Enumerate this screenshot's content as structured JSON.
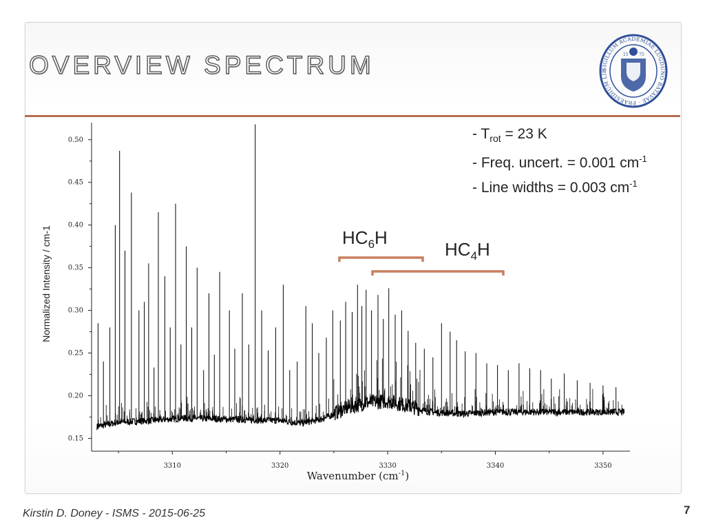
{
  "slide": {
    "title": "OVERVIEW SPECTRUM",
    "footer": "Kirstin D. Doney - ISMS - 2015-06-25",
    "page_number": "7"
  },
  "logo": {
    "name": "university-seal",
    "text": "SIGILLUM ACADEMIAE LUGDUNO BATAVAE · PRAESIDIUM LIBERTATIS",
    "year_left": "15",
    "year_right": "75",
    "color": "#2f4f9a"
  },
  "annotation": {
    "line1_prefix": "- T",
    "line1_sub": "rot",
    "line1_suffix": " = 23 K",
    "line2": "- Freq. uncert. = 0.001 cm",
    "line2_sup": "-1",
    "line3": "- Line widths = 0.003 cm",
    "line3_sup": "-1"
  },
  "groups": {
    "hc6h": {
      "prefix": "HC",
      "sub": "6",
      "suffix": "H"
    },
    "hc4h": {
      "prefix": "HC",
      "sub": "4",
      "suffix": "H"
    }
  },
  "colors": {
    "accent": "#b36d4f",
    "bracket": "#c87f5f",
    "trace": "#000000"
  },
  "chart_data": {
    "type": "line",
    "title": "",
    "xlabel": "Wavenumber (cm-1)",
    "xlabel_prefix": "Wavenumber (cm",
    "xlabel_sup": "-1",
    "xlabel_suffix": ")",
    "ylabel": "Normalized Intensity / cm-1",
    "xlim": [
      3302.5,
      3352.5
    ],
    "ylim": [
      0.135,
      0.52
    ],
    "xticks": [
      3310,
      3320,
      3330,
      3340,
      3350
    ],
    "xtick_labels": [
      "3310",
      "3320",
      "3330",
      "3340",
      "3350"
    ],
    "yticks": [
      0.15,
      0.2,
      0.25,
      0.3,
      0.35,
      0.4,
      0.45,
      0.5
    ],
    "ytick_labels": [
      "0.15",
      "0.20",
      "0.25",
      "0.30",
      "0.35",
      "0.40",
      "0.45",
      "0.50"
    ],
    "grid": false,
    "series": [
      {
        "values_description_free": true,
        "baseline": [
          [
            3303.0,
            0.163
          ],
          [
            3305.0,
            0.168
          ],
          [
            3308.0,
            0.17
          ],
          [
            3311.0,
            0.173
          ],
          [
            3314.0,
            0.172
          ],
          [
            3317.0,
            0.171
          ],
          [
            3320.0,
            0.17
          ],
          [
            3322.0,
            0.167
          ],
          [
            3324.0,
            0.172
          ],
          [
            3326.0,
            0.183
          ],
          [
            3328.0,
            0.19
          ],
          [
            3330.0,
            0.192
          ],
          [
            3332.0,
            0.186
          ],
          [
            3334.0,
            0.18
          ],
          [
            3337.0,
            0.178
          ],
          [
            3340.0,
            0.18
          ],
          [
            3343.0,
            0.18
          ],
          [
            3346.0,
            0.18
          ],
          [
            3349.0,
            0.18
          ],
          [
            3352.0,
            0.18
          ]
        ],
        "peaks": [
          [
            3303.1,
            0.285
          ],
          [
            3303.6,
            0.24
          ],
          [
            3304.2,
            0.28
          ],
          [
            3304.7,
            0.4
          ],
          [
            3305.1,
            0.487
          ],
          [
            3305.6,
            0.37
          ],
          [
            3306.2,
            0.438
          ],
          [
            3306.9,
            0.3
          ],
          [
            3307.4,
            0.31
          ],
          [
            3307.8,
            0.355
          ],
          [
            3308.3,
            0.233
          ],
          [
            3308.7,
            0.415
          ],
          [
            3309.3,
            0.34
          ],
          [
            3309.8,
            0.28
          ],
          [
            3310.3,
            0.425
          ],
          [
            3310.8,
            0.26
          ],
          [
            3311.3,
            0.375
          ],
          [
            3311.8,
            0.28
          ],
          [
            3312.3,
            0.35
          ],
          [
            3312.9,
            0.23
          ],
          [
            3313.4,
            0.32
          ],
          [
            3313.9,
            0.248
          ],
          [
            3314.4,
            0.345
          ],
          [
            3315.3,
            0.3
          ],
          [
            3315.8,
            0.255
          ],
          [
            3316.5,
            0.32
          ],
          [
            3317.1,
            0.26
          ],
          [
            3317.7,
            0.518
          ],
          [
            3318.3,
            0.3
          ],
          [
            3318.9,
            0.253
          ],
          [
            3319.6,
            0.28
          ],
          [
            3320.3,
            0.33
          ],
          [
            3320.9,
            0.23
          ],
          [
            3321.6,
            0.24
          ],
          [
            3322.4,
            0.305
          ],
          [
            3323.0,
            0.285
          ],
          [
            3323.6,
            0.25
          ],
          [
            3324.3,
            0.268
          ],
          [
            3324.9,
            0.3
          ],
          [
            3325.6,
            0.288
          ],
          [
            3326.1,
            0.31
          ],
          [
            3326.7,
            0.298
          ],
          [
            3327.2,
            0.33
          ],
          [
            3327.6,
            0.305
          ],
          [
            3328.0,
            0.324
          ],
          [
            3328.5,
            0.3
          ],
          [
            3329.1,
            0.318
          ],
          [
            3329.6,
            0.29
          ],
          [
            3330.1,
            0.326
          ],
          [
            3330.7,
            0.295
          ],
          [
            3331.3,
            0.3
          ],
          [
            3331.9,
            0.276
          ],
          [
            3332.6,
            0.262
          ],
          [
            3333.4,
            0.255
          ],
          [
            3334.2,
            0.245
          ],
          [
            3335.0,
            0.285
          ],
          [
            3335.8,
            0.275
          ],
          [
            3336.4,
            0.265
          ],
          [
            3337.2,
            0.252
          ],
          [
            3338.2,
            0.25
          ],
          [
            3339.2,
            0.238
          ],
          [
            3340.2,
            0.236
          ],
          [
            3341.2,
            0.23
          ],
          [
            3342.2,
            0.238
          ],
          [
            3343.2,
            0.232
          ],
          [
            3344.2,
            0.23
          ],
          [
            3345.2,
            0.22
          ],
          [
            3346.4,
            0.226
          ],
          [
            3347.6,
            0.218
          ],
          [
            3348.8,
            0.215
          ],
          [
            3350.0,
            0.212
          ],
          [
            3351.2,
            0.21
          ]
        ]
      }
    ]
  }
}
